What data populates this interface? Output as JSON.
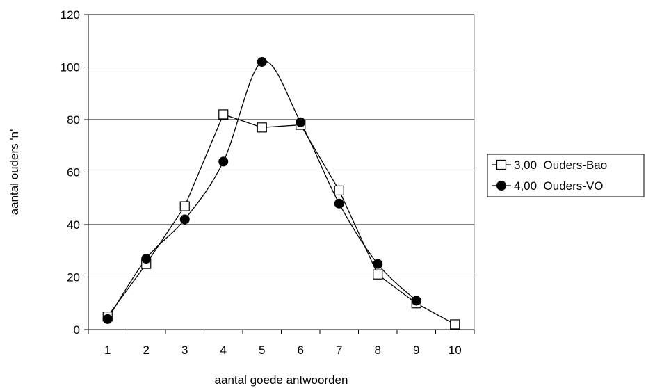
{
  "chart_data": {
    "type": "line",
    "title": "",
    "xlabel": "aantal goede antwoorden",
    "ylabel": "aantal ouders 'n'",
    "x": [
      1,
      2,
      3,
      4,
      5,
      6,
      7,
      8,
      9,
      10
    ],
    "ylim": [
      0,
      120
    ],
    "yticks": [
      0,
      20,
      40,
      60,
      80,
      100,
      120
    ],
    "grid": "horizontal",
    "legend_position": "right",
    "series": [
      {
        "name": "3,00  Ouders-Bao",
        "marker": "open-square",
        "smooth": false,
        "color": "#000000",
        "values": [
          5,
          25,
          47,
          82,
          77,
          78,
          53,
          21,
          10,
          2
        ]
      },
      {
        "name": "4,00  Ouders-VO",
        "marker": "filled-circle",
        "smooth": true,
        "color": "#000000",
        "values": [
          4,
          27,
          42,
          64,
          102,
          79,
          48,
          25,
          11,
          null
        ]
      }
    ]
  }
}
